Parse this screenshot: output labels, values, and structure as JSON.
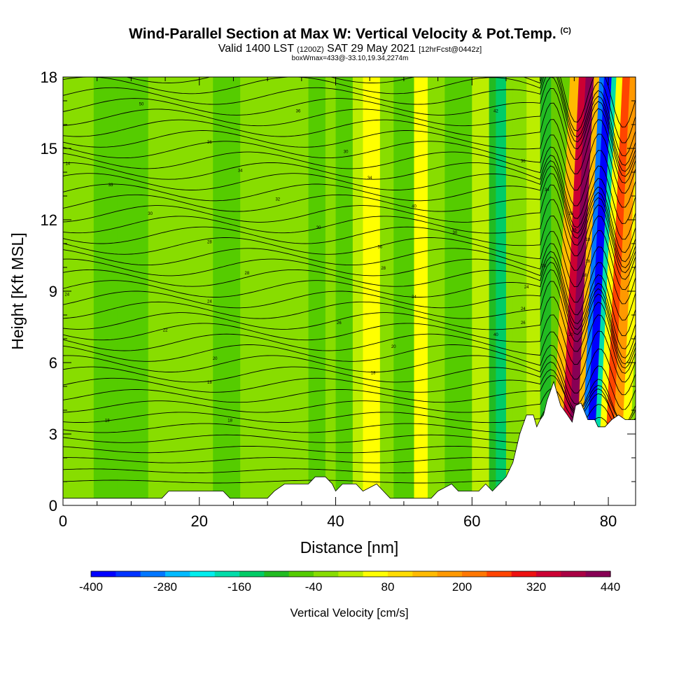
{
  "header": {
    "title_main": "Wind-Parallel Section at Max W: Vertical Velocity & Pot.Temp.",
    "title_copy": "(C)",
    "sub_valid": "Valid 1400 LST",
    "sub_utc": "(1200Z)",
    "sub_date": "SAT 29 May 2021",
    "sub_fcst": "[12hrFcst@0442z]",
    "sub_box": "boxWmax=433@-33.10,19.34,2274m"
  },
  "colors": {
    "background_green": "#66cc00",
    "terrain": "#ffffff",
    "contour": "#000000"
  },
  "colorbar": {
    "label": "Vertical Velocity [cm/s]",
    "tick_labels": [
      "-400",
      "-280",
      "-160",
      "-40",
      "80",
      "200",
      "320",
      "440"
    ],
    "colors": [
      "#0000ff",
      "#0033ff",
      "#0077ff",
      "#00bbff",
      "#00eeee",
      "#00ddaa",
      "#00cc66",
      "#22bb22",
      "#55cc00",
      "#88dd00",
      "#bbee00",
      "#ffff00",
      "#ffdd00",
      "#ffbb00",
      "#ff9900",
      "#ff7700",
      "#ff4400",
      "#ee1111",
      "#cc0033",
      "#aa0044",
      "#880055"
    ]
  },
  "chart_data": {
    "type": "heatmap",
    "title": "Wind-Parallel Section at Max W: Vertical Velocity & Pot.Temp.",
    "xlabel": "Distance [nm]",
    "ylabel": "Height [Kft MSL]",
    "xlim": [
      0,
      84
    ],
    "ylim": [
      0,
      18
    ],
    "x_ticks": [
      0,
      20,
      40,
      60,
      80
    ],
    "y_ticks": [
      0,
      3,
      6,
      9,
      12,
      15,
      18
    ],
    "x_tick_labels": [
      "0",
      "20",
      "40",
      "60",
      "80"
    ],
    "y_tick_labels": [
      "0",
      "3",
      "6",
      "9",
      "12",
      "15",
      "18"
    ],
    "fill_variable": "Vertical Velocity [cm/s]",
    "contour_variable": "Potential Temperature",
    "bands": [
      {
        "x0": 0,
        "x1": 1.2,
        "w": -20
      },
      {
        "x0": 1.2,
        "x1": 4.5,
        "w": -35
      },
      {
        "x0": 4.5,
        "x1": 8,
        "w": -60
      },
      {
        "x0": 8,
        "x1": 12.5,
        "w": -50
      },
      {
        "x0": 12.5,
        "x1": 19.5,
        "w": -30
      },
      {
        "x0": 19.5,
        "x1": 22,
        "w": -20
      },
      {
        "x0": 22,
        "x1": 26,
        "w": -45
      },
      {
        "x0": 26,
        "x1": 29,
        "w": -15
      },
      {
        "x0": 29,
        "x1": 33,
        "w": -35
      },
      {
        "x0": 33,
        "x1": 36,
        "w": -20
      },
      {
        "x0": 36,
        "x1": 38.5,
        "w": -45
      },
      {
        "x0": 38.5,
        "x1": 40,
        "w": -10
      },
      {
        "x0": 40,
        "x1": 42.5,
        "w": -50
      },
      {
        "x0": 42.5,
        "x1": 44,
        "w": 10
      },
      {
        "x0": 44,
        "x1": 46.5,
        "w": 70
      },
      {
        "x0": 46.5,
        "x1": 48.5,
        "w": -30
      },
      {
        "x0": 48.5,
        "x1": 51.5,
        "w": -60
      },
      {
        "x0": 51.5,
        "x1": 53.5,
        "w": 40
      },
      {
        "x0": 53.5,
        "x1": 56,
        "w": -20
      },
      {
        "x0": 56,
        "x1": 60,
        "w": -45
      },
      {
        "x0": 60,
        "x1": 62.5,
        "w": 20
      },
      {
        "x0": 62.5,
        "x1": 63.5,
        "w": -90
      },
      {
        "x0": 63.5,
        "x1": 65,
        "w": -160
      },
      {
        "x0": 65,
        "x1": 66,
        "w": -30
      },
      {
        "x0": 66,
        "x1": 68,
        "w": -40
      },
      {
        "x0": 68,
        "x1": 70,
        "w": 20
      },
      {
        "x0": 70,
        "x1": 71.5,
        "w": -120
      },
      {
        "x0": 71.5,
        "x1": 72.8,
        "w": 140
      },
      {
        "x0": 72.8,
        "x1": 73.8,
        "w": 320
      },
      {
        "x0": 73.8,
        "x1": 75,
        "w": 433
      },
      {
        "x0": 75,
        "x1": 75.8,
        "w": 120
      },
      {
        "x0": 75.8,
        "x1": 76.5,
        "w": -300
      },
      {
        "x0": 76.5,
        "x1": 77.6,
        "w": -400
      },
      {
        "x0": 77.6,
        "x1": 78.3,
        "w": -180
      },
      {
        "x0": 78.3,
        "x1": 79.2,
        "w": 60
      },
      {
        "x0": 79.2,
        "x1": 80.3,
        "w": 260
      },
      {
        "x0": 80.3,
        "x1": 81.6,
        "w": 170
      },
      {
        "x0": 81.6,
        "x1": 82.8,
        "w": 60
      },
      {
        "x0": 82.8,
        "x1": 84,
        "w": -40
      }
    ],
    "terrain_nm_kft": [
      [
        0,
        0.3
      ],
      [
        14.5,
        0.3
      ],
      [
        15.5,
        0.6
      ],
      [
        23.5,
        0.6
      ],
      [
        24.5,
        0.3
      ],
      [
        30,
        0.3
      ],
      [
        31,
        0.6
      ],
      [
        32.5,
        0.9
      ],
      [
        36,
        0.9
      ],
      [
        37,
        1.2
      ],
      [
        38.5,
        1.2
      ],
      [
        39.5,
        0.9
      ],
      [
        40,
        0.6
      ],
      [
        41,
        0.9
      ],
      [
        43,
        0.9
      ],
      [
        44,
        0.6
      ],
      [
        46,
        0.9
      ],
      [
        47,
        0.6
      ],
      [
        48,
        0.3
      ],
      [
        54,
        0.3
      ],
      [
        55,
        0.6
      ],
      [
        57,
        0.9
      ],
      [
        58,
        0.6
      ],
      [
        61,
        0.6
      ],
      [
        62,
        0.9
      ],
      [
        63,
        0.6
      ],
      [
        64,
        0.9
      ],
      [
        65,
        1.2
      ],
      [
        66,
        1.8
      ],
      [
        67,
        3.0
      ],
      [
        68,
        3.8
      ],
      [
        69,
        3.8
      ],
      [
        69.5,
        3.3
      ],
      [
        70,
        3.6
      ],
      [
        70.5,
        3.8
      ],
      [
        71,
        4.4
      ],
      [
        72,
        5.2
      ],
      [
        73,
        4.2
      ],
      [
        74,
        3.8
      ],
      [
        74.7,
        3.5
      ],
      [
        75.2,
        4.2
      ],
      [
        76,
        4.3
      ],
      [
        77,
        3.6
      ],
      [
        78,
        3.6
      ],
      [
        78.5,
        3.3
      ],
      [
        79.5,
        3.3
      ],
      [
        80.5,
        3.6
      ],
      [
        81.5,
        3.8
      ],
      [
        82.5,
        3.6
      ],
      [
        84,
        3.6
      ]
    ],
    "theta_labels": [
      {
        "x": 11.5,
        "y": 16.9,
        "t": "50"
      },
      {
        "x": 34.5,
        "y": 16.6,
        "t": "36"
      },
      {
        "x": 63.5,
        "y": 16.6,
        "t": "42"
      },
      {
        "x": 21.5,
        "y": 15.3,
        "t": "36"
      },
      {
        "x": 41.5,
        "y": 14.9,
        "t": "30"
      },
      {
        "x": 67.5,
        "y": 14.5,
        "t": "36"
      },
      {
        "x": 0.7,
        "y": 14.4,
        "t": "14"
      },
      {
        "x": 26,
        "y": 14.1,
        "t": "34"
      },
      {
        "x": 45,
        "y": 13.8,
        "t": "34"
      },
      {
        "x": 7,
        "y": 13.5,
        "t": "33"
      },
      {
        "x": 71,
        "y": 13.3,
        "t": "34"
      },
      {
        "x": 31.5,
        "y": 12.9,
        "t": "32"
      },
      {
        "x": 51.5,
        "y": 12.6,
        "t": "40"
      },
      {
        "x": 12.8,
        "y": 12.3,
        "t": "30"
      },
      {
        "x": 74.5,
        "y": 12.3,
        "t": "26"
      },
      {
        "x": 37.5,
        "y": 11.7,
        "t": "30"
      },
      {
        "x": 57.5,
        "y": 11.5,
        "t": "30"
      },
      {
        "x": 75,
        "y": 11.6,
        "t": "26"
      },
      {
        "x": 21.5,
        "y": 11.1,
        "t": "28"
      },
      {
        "x": 77,
        "y": 11.2,
        "t": "18"
      },
      {
        "x": 46.5,
        "y": 10.9,
        "t": "36"
      },
      {
        "x": 77,
        "y": 10.3,
        "t": "16"
      },
      {
        "x": 47,
        "y": 10.0,
        "t": "28"
      },
      {
        "x": 70.5,
        "y": 10.1,
        "t": "18"
      },
      {
        "x": 27,
        "y": 9.8,
        "t": "28"
      },
      {
        "x": 76.5,
        "y": 9.7,
        "t": "18"
      },
      {
        "x": 68,
        "y": 9.2,
        "t": "24"
      },
      {
        "x": 0.6,
        "y": 8.9,
        "t": "24"
      },
      {
        "x": 51.5,
        "y": 8.8,
        "t": "34"
      },
      {
        "x": 21.5,
        "y": 8.6,
        "t": "24"
      },
      {
        "x": 67.5,
        "y": 8.3,
        "t": "24"
      },
      {
        "x": 40.5,
        "y": 7.7,
        "t": "26"
      },
      {
        "x": 67.5,
        "y": 7.7,
        "t": "26"
      },
      {
        "x": 15,
        "y": 7.4,
        "t": "22"
      },
      {
        "x": 63.5,
        "y": 7.2,
        "t": "40"
      },
      {
        "x": 74.5,
        "y": 7.2,
        "t": "20"
      },
      {
        "x": 48.5,
        "y": 6.7,
        "t": "20"
      },
      {
        "x": 22.3,
        "y": 6.2,
        "t": "20"
      },
      {
        "x": 45.5,
        "y": 5.6,
        "t": "18"
      },
      {
        "x": 21.5,
        "y": 5.2,
        "t": "18"
      },
      {
        "x": 6.5,
        "y": 3.6,
        "t": "18"
      },
      {
        "x": 24.5,
        "y": 3.6,
        "t": "18"
      }
    ]
  }
}
